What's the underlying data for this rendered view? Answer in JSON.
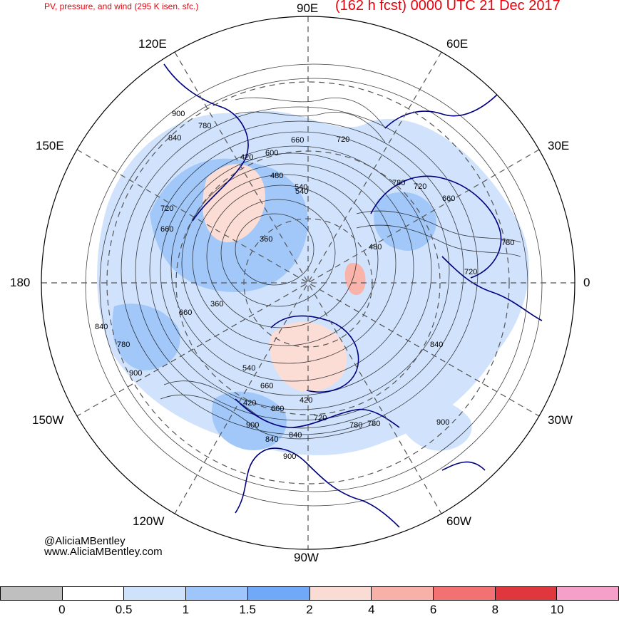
{
  "header": {
    "left_title": "PV, pressure, and wind (295 K isen. sfc.)",
    "right_title": "(162 h fcst) 0000 UTC 21 Dec 2017"
  },
  "map": {
    "projection": "north-polar-stereographic",
    "longitude_labels": [
      "90E",
      "60E",
      "30E",
      "0",
      "30W",
      "60W",
      "90W",
      "120W",
      "150W",
      "180",
      "150E",
      "120E"
    ],
    "contour_labels": [
      "900",
      "840",
      "780",
      "720",
      "660",
      "600",
      "540",
      "480",
      "420",
      "360",
      "660",
      "720",
      "780",
      "840",
      "900",
      "660",
      "780",
      "840",
      "900",
      "720",
      "780",
      "660",
      "540",
      "480",
      "420",
      "360",
      "420",
      "540",
      "660",
      "720",
      "780",
      "840",
      "900",
      "900",
      "840",
      "780",
      "720",
      "660"
    ],
    "colors": {
      "coastline": "#00007f",
      "contour": "#000000",
      "grid": "#555555"
    }
  },
  "credit": {
    "twitter": "@AliciaMBentley",
    "website": "www.AliciaMBentley.com"
  },
  "colorbar": {
    "colors": [
      "#bfbfbf",
      "#ffffff",
      "#cfe2fc",
      "#9ec6fa",
      "#6fa9f7",
      "#fbdcd4",
      "#f8b1a6",
      "#f27273",
      "#e0373f",
      "#f5a0c8"
    ],
    "tick_labels": [
      "0",
      "0.5",
      "1",
      "1.5",
      "2",
      "4",
      "6",
      "8",
      "10"
    ]
  }
}
